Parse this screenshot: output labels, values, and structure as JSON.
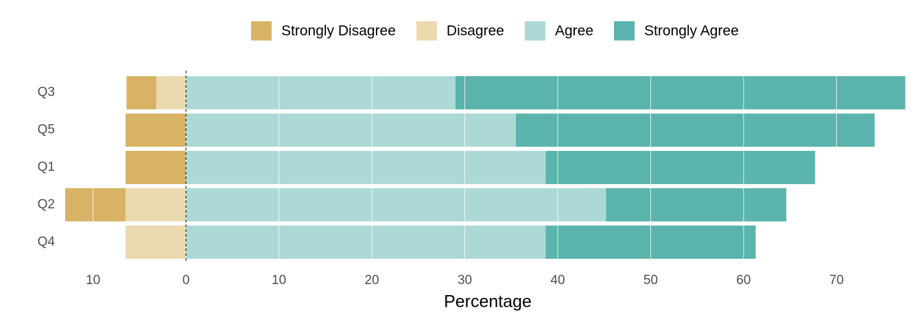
{
  "chart_data": {
    "type": "diverging-bar",
    "x_label": "Percentage",
    "categories": [
      "Q3",
      "Q5",
      "Q1",
      "Q2",
      "Q4"
    ],
    "series": [
      {
        "name": "Strongly Disagree",
        "color": "#d8b365",
        "values": [
          -3.2,
          -6.5,
          -6.5,
          -6.5,
          0
        ]
      },
      {
        "name": "Disagree",
        "color": "#ebd9b0",
        "values": [
          -3.2,
          0,
          0,
          -6.5,
          -6.5
        ]
      },
      {
        "name": "Agree",
        "color": "#acd9d5",
        "values": [
          29.0,
          35.5,
          38.7,
          45.2,
          38.7
        ]
      },
      {
        "name": "Strongly Agree",
        "color": "#5ab4ac",
        "values": [
          48.4,
          38.6,
          29.0,
          19.4,
          22.6
        ]
      }
    ],
    "xlim": [
      -13,
      77.5
    ],
    "xticks": [
      {
        "value": -10,
        "label": "10"
      },
      0,
      10,
      20,
      30,
      40,
      50,
      60,
      70
    ],
    "grid": true,
    "legend": "top"
  }
}
